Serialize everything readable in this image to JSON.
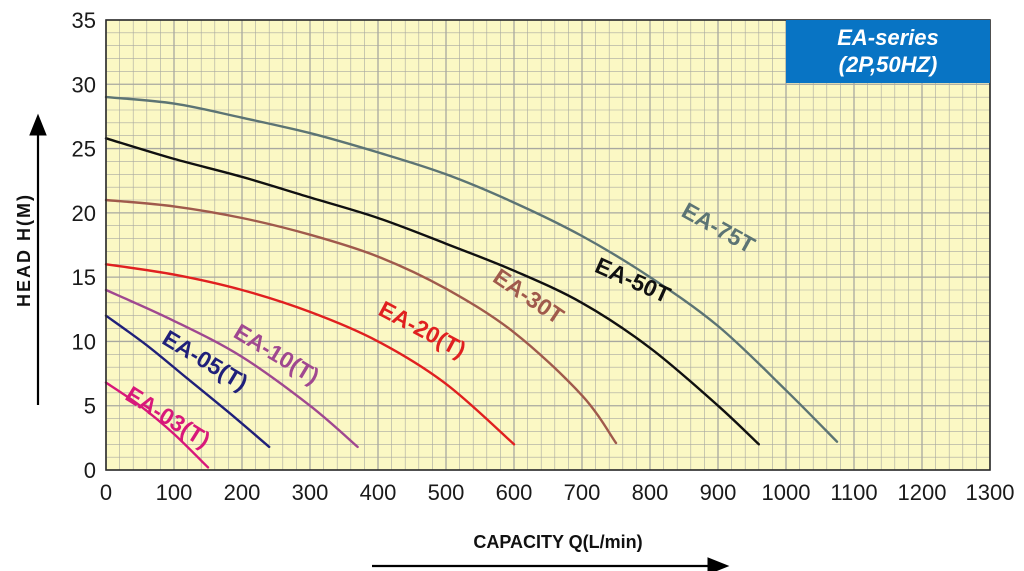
{
  "chart_data": {
    "type": "line",
    "title": "",
    "xlabel": "CAPACITY  Q(L/min)",
    "ylabel": "HEAD  H(M)",
    "xlim": [
      0,
      1300
    ],
    "ylim": [
      0,
      35
    ],
    "xticks": [
      0,
      100,
      200,
      300,
      400,
      500,
      600,
      700,
      800,
      900,
      1000,
      1100,
      1200,
      1300
    ],
    "yticks": [
      0,
      5,
      10,
      15,
      20,
      25,
      30,
      35
    ],
    "grid": true,
    "background_color": "#fbf8c4",
    "grid_color": "#a8a8a0",
    "legend": "none",
    "badge": {
      "line1": "EA-series",
      "line2": "(2P,50HZ)",
      "color": "#0874c4"
    },
    "series": [
      {
        "name": "EA-03(T)",
        "color": "#d8187a",
        "x": [
          0,
          50,
          100,
          150
        ],
        "y": [
          6.8,
          5.0,
          2.8,
          0.2
        ]
      },
      {
        "name": "EA-05(T)",
        "color": "#20207a",
        "x": [
          0,
          60,
          120,
          180,
          240
        ],
        "y": [
          12.0,
          9.7,
          7.1,
          4.5,
          1.8
        ]
      },
      {
        "name": "EA-10(T)",
        "color": "#a04890",
        "x": [
          0,
          100,
          200,
          300,
          370
        ],
        "y": [
          14.0,
          11.6,
          8.8,
          5.0,
          1.8
        ]
      },
      {
        "name": "EA-20(T)",
        "color": "#e02020",
        "x": [
          0,
          100,
          200,
          300,
          400,
          500,
          600
        ],
        "y": [
          16.0,
          15.2,
          14.0,
          12.3,
          10.0,
          6.7,
          2.0
        ]
      },
      {
        "name": "EA-30T",
        "color": "#a05a4c",
        "x": [
          0,
          100,
          200,
          300,
          400,
          500,
          600,
          700,
          750
        ],
        "y": [
          21.0,
          20.5,
          19.6,
          18.3,
          16.6,
          14.1,
          10.7,
          5.8,
          2.1
        ]
      },
      {
        "name": "EA-50T",
        "color": "#101010",
        "x": [
          0,
          100,
          200,
          300,
          400,
          500,
          600,
          700,
          800,
          900,
          960
        ],
        "y": [
          25.8,
          24.2,
          22.8,
          21.2,
          19.6,
          17.6,
          15.5,
          13.0,
          9.5,
          5.0,
          2.0
        ]
      },
      {
        "name": "EA-75T",
        "color": "#5c7474",
        "x": [
          0,
          100,
          200,
          300,
          400,
          500,
          600,
          700,
          800,
          900,
          1000,
          1075
        ],
        "y": [
          29.0,
          28.5,
          27.4,
          26.2,
          24.7,
          23.0,
          20.8,
          18.2,
          15.0,
          11.2,
          6.2,
          2.2
        ]
      }
    ]
  }
}
